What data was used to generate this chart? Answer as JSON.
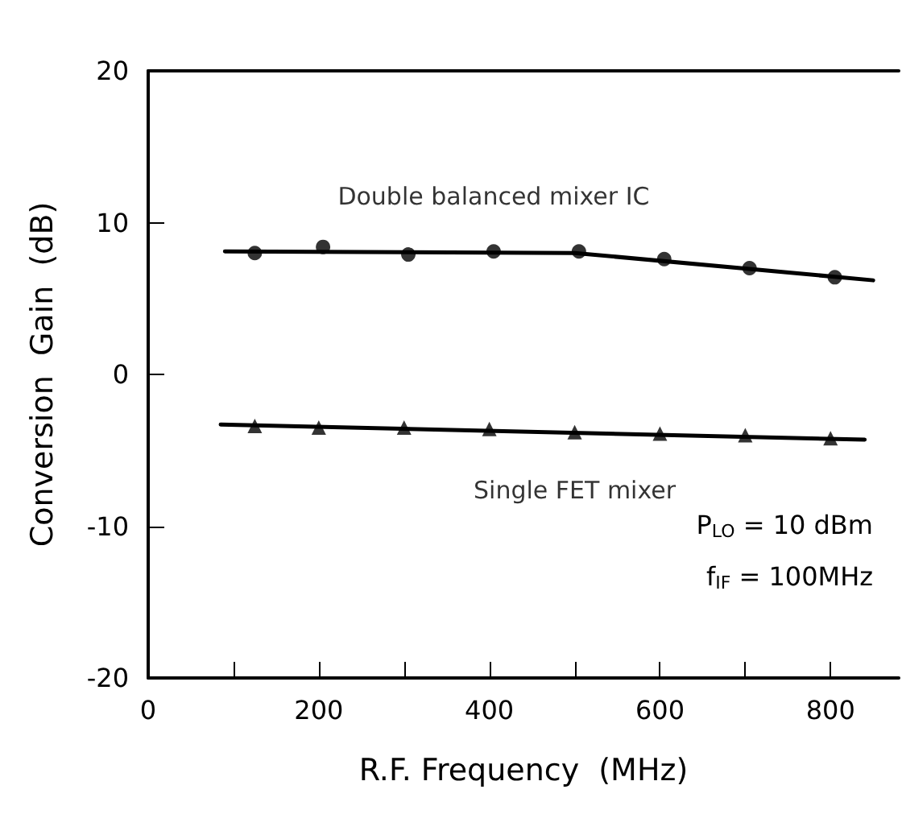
{
  "chart_data": {
    "type": "scatter",
    "xlabel": "R.F. Frequency  (MHz)",
    "ylabel": "Conversion  Gain  (dB)",
    "series": [
      {
        "name": "Double balanced mixer IC",
        "marker": "circle",
        "color": "#000000",
        "x": [
          125,
          205,
          305,
          405,
          505,
          605,
          705,
          805
        ],
        "values": [
          8.0,
          8.4,
          7.9,
          8.1,
          8.1,
          7.6,
          7.0,
          6.4
        ]
      },
      {
        "name": "Single FET mixer",
        "marker": "triangle",
        "color": "#000000",
        "x": [
          125,
          200,
          300,
          400,
          500,
          600,
          700,
          800
        ],
        "values": [
          -3.4,
          -3.5,
          -3.5,
          -3.6,
          -3.8,
          -3.9,
          -4.0,
          -4.2
        ]
      },
      {
        "type": "line",
        "marker": "none",
        "color": "#000000",
        "x": [
          90,
          500,
          850
        ],
        "values": [
          8.1,
          8.0,
          6.2
        ]
      },
      {
        "type": "line",
        "marker": "none",
        "color": "#000000",
        "x": [
          85,
          840
        ],
        "values": [
          -3.3,
          -4.3
        ]
      }
    ],
    "annotations": [
      "P$_{LO}$ = 10 dBm",
      "f$_{IF}$ = 100MHz"
    ],
    "xlim": [
      0,
      880
    ],
    "xticks": [
      0,
      {
        "value": 100,
        "label": null
      },
      200,
      {
        "value": 300,
        "label": null
      },
      400,
      {
        "value": 500,
        "label": null
      },
      600,
      {
        "value": 700,
        "label": null
      },
      800
    ],
    "ylim": [
      -20,
      20
    ],
    "yticks": [
      -20,
      -10,
      0,
      10,
      20
    ],
    "grid": false,
    "legend": false
  }
}
